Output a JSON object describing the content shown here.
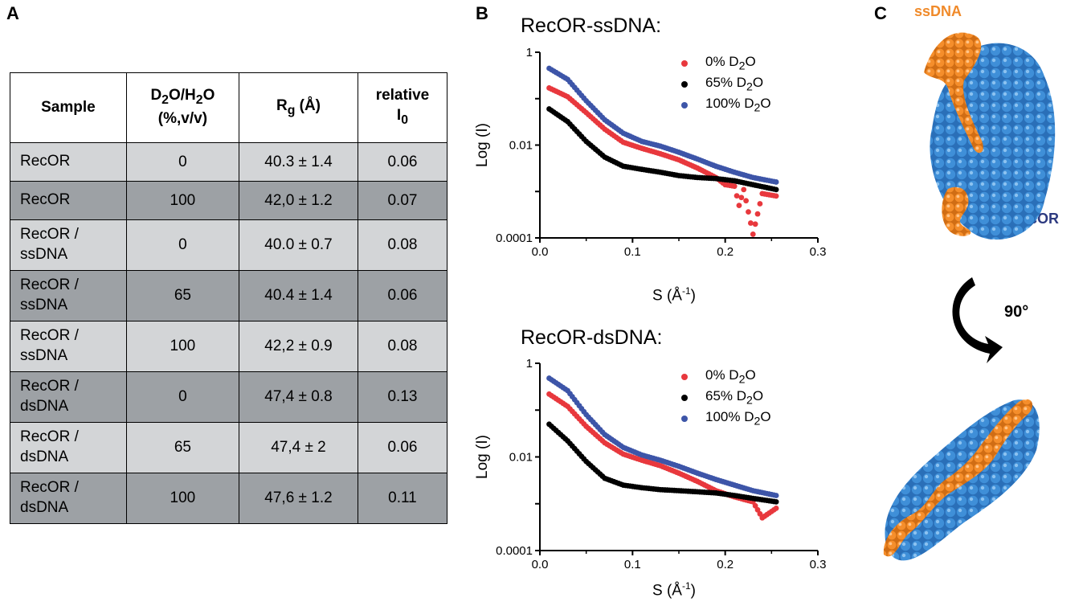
{
  "panels": {
    "a": "A",
    "b": "B",
    "c": "C"
  },
  "table": {
    "headers": {
      "sample": "Sample",
      "d2o_main": "D",
      "d2o_sub1": "2",
      "d2o_mid": "O/H",
      "d2o_sub2": "2",
      "d2o_end": "O",
      "d2o_line2": "(%,v/v)",
      "rg_main": "R",
      "rg_sub": "g",
      "rg_unit": " (Å)",
      "rel_line1": "relative",
      "rel_main": "I",
      "rel_sub": "0"
    },
    "rows": [
      {
        "sample": "RecOR",
        "d2o": "0",
        "rg": "40.3 ± 1.4",
        "rel": "0.06"
      },
      {
        "sample": "RecOR",
        "d2o": "100",
        "rg": "42,0 ± 1.2",
        "rel": "0.07"
      },
      {
        "sample": "RecOR / ssDNA",
        "d2o": "0",
        "rg": "40.0 ± 0.7",
        "rel": "0.08"
      },
      {
        "sample": "RecOR / ssDNA",
        "d2o": "65",
        "rg": "40.4 ± 1.4",
        "rel": "0.06"
      },
      {
        "sample": "RecOR / ssDNA",
        "d2o": "100",
        "rg": "42,2 ± 0.9",
        "rel": "0.08"
      },
      {
        "sample": "RecOR / dsDNA",
        "d2o": "0",
        "rg": "47,4 ± 0.8",
        "rel": "0.13"
      },
      {
        "sample": "RecOR / dsDNA",
        "d2o": "65",
        "rg": "47,4 ± 2",
        "rel": "0.06"
      },
      {
        "sample": "RecOR / dsDNA",
        "d2o": "100",
        "rg": "47,6 ± 1.2",
        "rel": "0.11"
      }
    ]
  },
  "legend_items": [
    {
      "pre": "0% D",
      "sub": "2",
      "post": "O",
      "color": "#e8383d"
    },
    {
      "pre": "65% D",
      "sub": "2",
      "post": "O",
      "color": "#000000"
    },
    {
      "pre": "100% D",
      "sub": "2",
      "post": "O",
      "color": "#3d55a8"
    }
  ],
  "axis_text": {
    "ylabel": "Log (I)",
    "xlabel_pre": "S (Å",
    "xlabel_sup": "-1",
    "xlabel_post": ")"
  },
  "molecule": {
    "ssdna_label": "ssDNA",
    "recor_label": "RecOR",
    "rotation_label": "90°",
    "colors": {
      "protein": "#2f7bc6",
      "dna": "#f08a2a"
    }
  },
  "chart_data": [
    {
      "type": "scatter",
      "title": "RecOR-ssDNA:",
      "xlabel": "S (Å-1)",
      "ylabel": "Log (I)",
      "xlim": [
        0.0,
        0.3
      ],
      "ylim": [
        0.0001,
        1
      ],
      "yscale": "log",
      "xticks": [
        "0.0",
        "0.1",
        "0.2",
        "0.3"
      ],
      "yticks": [
        "0.0001",
        "0.01",
        "1"
      ],
      "legend_position": "top-right",
      "series": [
        {
          "name": "0% D2O",
          "color": "#e8383d",
          "points": [
            [
              0.01,
              0.17
            ],
            [
              0.03,
              0.11
            ],
            [
              0.05,
              0.05
            ],
            [
              0.07,
              0.022
            ],
            [
              0.09,
              0.0115
            ],
            [
              0.11,
              0.0085
            ],
            [
              0.13,
              0.0065
            ],
            [
              0.15,
              0.0048
            ],
            [
              0.17,
              0.0032
            ],
            [
              0.19,
              0.002
            ],
            [
              0.2,
              0.0014
            ],
            [
              0.21,
              0.0013
            ],
            [
              0.215,
              0.0005
            ],
            [
              0.22,
              0.0011
            ],
            [
              0.23,
              0.00012
            ],
            [
              0.24,
              0.0009
            ],
            [
              0.255,
              0.0008
            ]
          ]
        },
        {
          "name": "65% D2O",
          "color": "#000000",
          "points": [
            [
              0.01,
              0.06
            ],
            [
              0.03,
              0.032
            ],
            [
              0.05,
              0.012
            ],
            [
              0.07,
              0.0055
            ],
            [
              0.09,
              0.0035
            ],
            [
              0.11,
              0.003
            ],
            [
              0.13,
              0.0026
            ],
            [
              0.15,
              0.0022
            ],
            [
              0.17,
              0.002
            ],
            [
              0.19,
              0.0019
            ],
            [
              0.21,
              0.0017
            ],
            [
              0.23,
              0.0014
            ],
            [
              0.255,
              0.0011
            ]
          ]
        },
        {
          "name": "100% D2O",
          "color": "#3d55a8",
          "points": [
            [
              0.01,
              0.45
            ],
            [
              0.03,
              0.26
            ],
            [
              0.05,
              0.09
            ],
            [
              0.07,
              0.035
            ],
            [
              0.09,
              0.018
            ],
            [
              0.11,
              0.012
            ],
            [
              0.13,
              0.0095
            ],
            [
              0.15,
              0.007
            ],
            [
              0.17,
              0.005
            ],
            [
              0.19,
              0.0035
            ],
            [
              0.21,
              0.0026
            ],
            [
              0.23,
              0.002
            ],
            [
              0.255,
              0.0016
            ]
          ]
        }
      ]
    },
    {
      "type": "scatter",
      "title": "RecOR-dsDNA:",
      "xlabel": "S (Å-1)",
      "ylabel": "Log (I)",
      "xlim": [
        0.0,
        0.3
      ],
      "ylim": [
        0.0001,
        1
      ],
      "yscale": "log",
      "xticks": [
        "0.0",
        "0.1",
        "0.2",
        "0.3"
      ],
      "yticks": [
        "0.0001",
        "0.01",
        "1"
      ],
      "legend_position": "top-right",
      "series": [
        {
          "name": "0% D2O",
          "color": "#e8383d",
          "points": [
            [
              0.01,
              0.22
            ],
            [
              0.03,
              0.12
            ],
            [
              0.05,
              0.045
            ],
            [
              0.07,
              0.02
            ],
            [
              0.09,
              0.0115
            ],
            [
              0.11,
              0.0085
            ],
            [
              0.13,
              0.0065
            ],
            [
              0.15,
              0.0045
            ],
            [
              0.17,
              0.003
            ],
            [
              0.19,
              0.0019
            ],
            [
              0.21,
              0.0014
            ],
            [
              0.23,
              0.0011
            ],
            [
              0.24,
              0.0005
            ],
            [
              0.255,
              0.0008
            ]
          ]
        },
        {
          "name": "65% D2O",
          "color": "#000000",
          "points": [
            [
              0.01,
              0.05
            ],
            [
              0.03,
              0.022
            ],
            [
              0.05,
              0.008
            ],
            [
              0.07,
              0.0035
            ],
            [
              0.09,
              0.0025
            ],
            [
              0.11,
              0.0022
            ],
            [
              0.13,
              0.002
            ],
            [
              0.15,
              0.0019
            ],
            [
              0.17,
              0.0018
            ],
            [
              0.19,
              0.0017
            ],
            [
              0.21,
              0.0015
            ],
            [
              0.23,
              0.0013
            ],
            [
              0.255,
              0.0011
            ]
          ]
        },
        {
          "name": "100% D2O",
          "color": "#3d55a8",
          "points": [
            [
              0.01,
              0.48
            ],
            [
              0.03,
              0.26
            ],
            [
              0.05,
              0.08
            ],
            [
              0.07,
              0.03
            ],
            [
              0.09,
              0.016
            ],
            [
              0.11,
              0.011
            ],
            [
              0.13,
              0.0085
            ],
            [
              0.15,
              0.0063
            ],
            [
              0.17,
              0.0045
            ],
            [
              0.19,
              0.0033
            ],
            [
              0.21,
              0.0025
            ],
            [
              0.23,
              0.0019
            ],
            [
              0.255,
              0.0015
            ]
          ]
        }
      ]
    }
  ]
}
